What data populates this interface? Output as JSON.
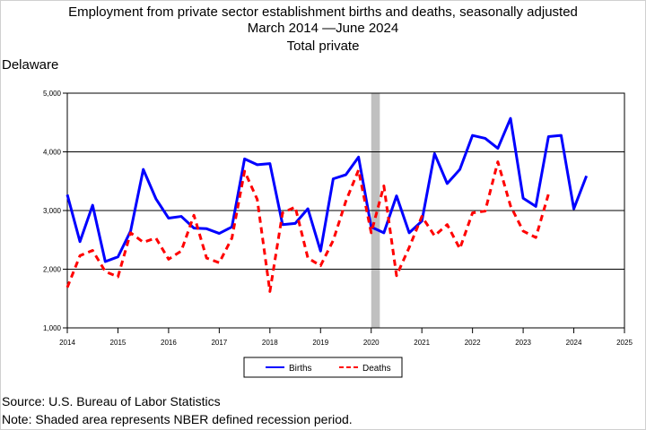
{
  "chart_data": {
    "type": "line",
    "title": "Employment from private sector establishment births and deaths, seasonally adjusted",
    "subtitle": "March 2014 —June 2024",
    "subtitle2": "Total private",
    "region": "Delaware",
    "x_ticks": [
      "2014",
      "2015",
      "2016",
      "2017",
      "2018",
      "2019",
      "2020",
      "2021",
      "2022",
      "2023",
      "2024",
      "2025"
    ],
    "y_ticks": [
      "1,000",
      "2,000",
      "3,000",
      "4,000",
      "5,000"
    ],
    "ylim": [
      1000,
      5000
    ],
    "xlim": [
      2014.0,
      2025.0
    ],
    "grid": "horizontal",
    "legend_position": "bottom-center",
    "recession": [
      2020.0,
      2020.17
    ],
    "series": [
      {
        "name": "Births",
        "color": "#0000ff",
        "style": "solid",
        "x": [
          2014.0,
          2014.25,
          2014.5,
          2014.75,
          2015.0,
          2015.25,
          2015.5,
          2015.75,
          2016.0,
          2016.25,
          2016.5,
          2016.75,
          2017.0,
          2017.25,
          2017.5,
          2017.75,
          2018.0,
          2018.25,
          2018.5,
          2018.75,
          2019.0,
          2019.25,
          2019.5,
          2019.75,
          2020.0,
          2020.25,
          2020.5,
          2020.75,
          2021.0,
          2021.25,
          2021.5,
          2021.75,
          2022.0,
          2022.25,
          2022.5,
          2022.75,
          2023.0,
          2023.25,
          2023.5,
          2023.75,
          2024.0,
          2024.25
        ],
        "values": [
          3270,
          2470,
          3090,
          2130,
          2210,
          2650,
          3700,
          3200,
          2870,
          2900,
          2700,
          2690,
          2610,
          2720,
          3880,
          3780,
          3800,
          2760,
          2780,
          3030,
          2310,
          3540,
          3610,
          3910,
          2720,
          2620,
          3250,
          2620,
          2820,
          3970,
          3460,
          3700,
          4280,
          4230,
          4060,
          4570,
          3210,
          3070,
          4260,
          4280,
          3030,
          3590
        ]
      },
      {
        "name": "Deaths",
        "color": "#ff0000",
        "style": "dashed",
        "x": [
          2014.0,
          2014.25,
          2014.5,
          2014.75,
          2015.0,
          2015.25,
          2015.5,
          2015.75,
          2016.0,
          2016.25,
          2016.5,
          2016.75,
          2017.0,
          2017.25,
          2017.5,
          2017.75,
          2018.0,
          2018.25,
          2018.5,
          2018.75,
          2019.0,
          2019.25,
          2019.5,
          2019.75,
          2020.0,
          2020.25,
          2020.5,
          2020.75,
          2021.0,
          2021.25,
          2021.5,
          2021.75,
          2022.0,
          2022.25,
          2022.5,
          2022.75,
          2023.0,
          2023.25,
          2023.5
        ],
        "values": [
          1690,
          2230,
          2320,
          1960,
          1870,
          2620,
          2460,
          2530,
          2170,
          2310,
          2920,
          2190,
          2110,
          2530,
          3670,
          3190,
          1620,
          2960,
          3060,
          2190,
          2060,
          2490,
          3160,
          3690,
          2620,
          3420,
          1890,
          2370,
          2900,
          2570,
          2760,
          2350,
          2960,
          2990,
          3830,
          3080,
          2650,
          2540,
          3280
        ]
      }
    ]
  },
  "legend": {
    "births": "Births",
    "deaths": "Deaths"
  },
  "footer": {
    "source": "Source: U.S. Bureau of Labor Statistics",
    "note": "Note: Shaded area represents NBER defined recession period."
  }
}
